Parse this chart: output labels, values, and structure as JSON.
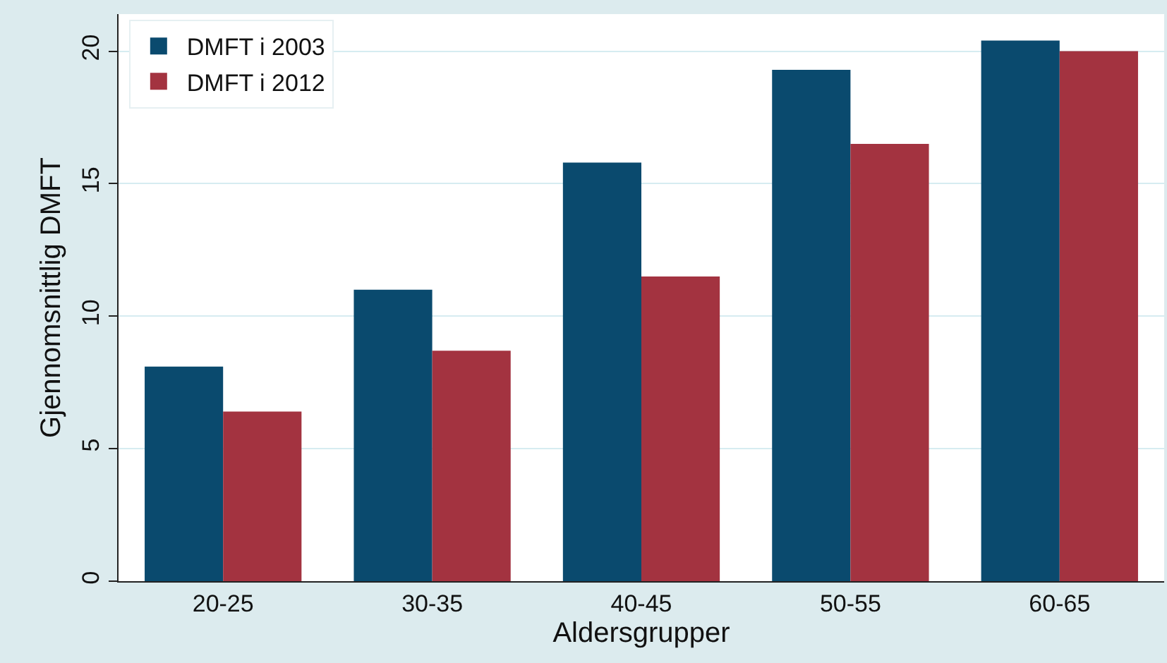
{
  "chart_data": {
    "type": "bar",
    "xlabel": "Aldersgrupper",
    "ylabel": "Gjennomsnittlig DMFT",
    "categories": [
      "20-25",
      "30-35",
      "40-45",
      "50-55",
      "60-65"
    ],
    "series": [
      {
        "name": "DMFT i 2003",
        "color": "#0a4a6e",
        "values": [
          8.1,
          11.0,
          15.8,
          19.3,
          20.4
        ]
      },
      {
        "name": "DMFT i 2012",
        "color": "#a33340",
        "values": [
          6.4,
          8.7,
          11.5,
          16.5,
          20.0
        ]
      }
    ],
    "ylim": [
      0,
      21.4
    ],
    "yticks": [
      0,
      5,
      10,
      15,
      20
    ],
    "grid": "y",
    "legend": "top left"
  }
}
